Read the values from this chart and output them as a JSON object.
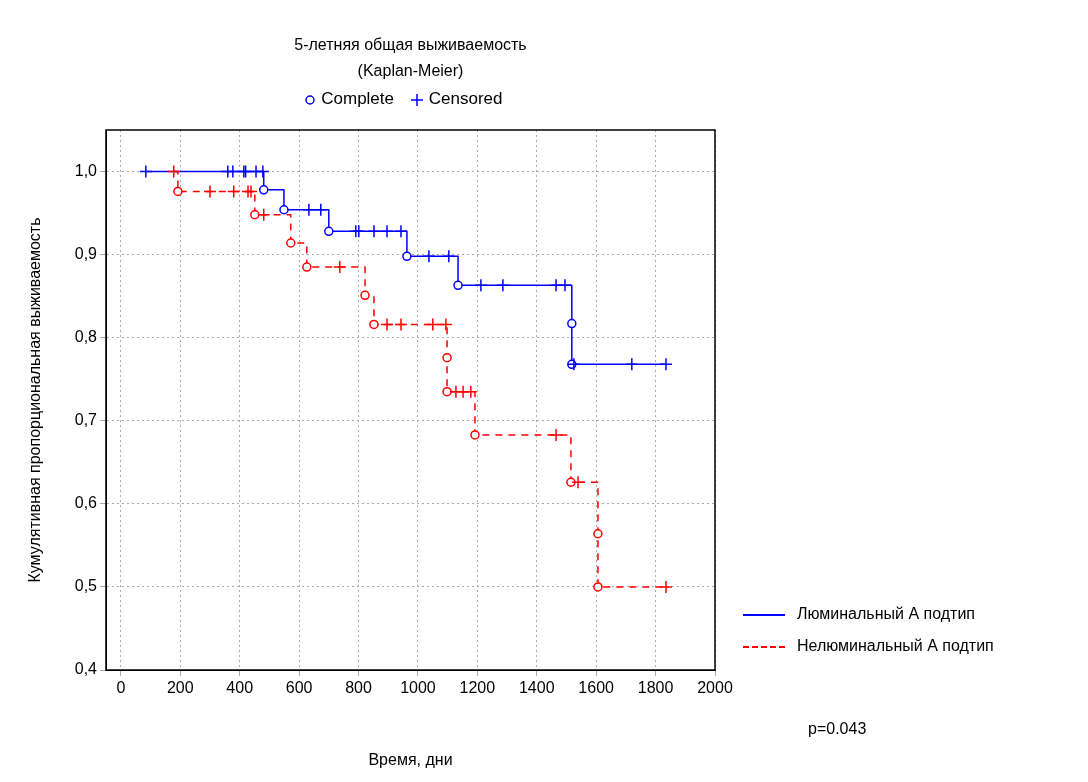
{
  "chart_data": {
    "type": "step",
    "title": "5-летняя общая выживаемость",
    "subtitle": "(Kaplan-Meier)",
    "xlabel": "Время, дни",
    "ylabel": "Кумулятивная пропорциональная выживаемость",
    "xlim": [
      -50,
      2000
    ],
    "xticks": [
      0,
      200,
      400,
      600,
      800,
      1000,
      1200,
      1400,
      1600,
      1800,
      2000
    ],
    "ylim": [
      0.4,
      1.05
    ],
    "yticks": [
      {
        "value": 0.4,
        "label": "0,4"
      },
      {
        "value": 0.5,
        "label": "0,5"
      },
      {
        "value": 0.6,
        "label": "0,6"
      },
      {
        "value": 0.7,
        "label": "0,7"
      },
      {
        "value": 0.8,
        "label": "0,8"
      },
      {
        "value": 0.9,
        "label": "0,9"
      },
      {
        "value": 1,
        "label": "1,0"
      }
    ],
    "grid": true,
    "legend": "right",
    "annotations": [
      "p=0.043"
    ],
    "series": [
      {
        "name": "Люминальный А подтип",
        "color": "#0000ff",
        "line_style": "solid",
        "marker": "none",
        "x": [
          84,
          481,
          549,
          700,
          963,
          1135,
          1518,
          1518,
          1835
        ],
        "values": [
          1,
          0.978,
          0.954,
          0.928,
          0.898,
          0.863,
          0.817,
          0.768,
          0.768
        ]
      },
      {
        "name": "Нелюминальный А подтип",
        "color": "#ff0000",
        "line_style": "dashed",
        "marker": "none",
        "x": [
          178,
          192,
          451,
          572,
          626,
          822,
          852,
          1098,
          1098,
          1192,
          1515,
          1606,
          1606,
          1835
        ],
        "values": [
          1,
          0.976,
          0.948,
          0.914,
          0.885,
          0.851,
          0.816,
          0.776,
          0.735,
          0.683,
          0.626,
          0.564,
          0.5,
          0.5
        ]
      },
      {
        "name": "Complete",
        "type": "scatter",
        "color": "#0000ff",
        "marker": "circle",
        "x": [
          481,
          549,
          700,
          963,
          1135,
          1518,
          1518
        ],
        "values": [
          0.978,
          0.954,
          0.928,
          0.898,
          0.863,
          0.817,
          0.768
        ]
      },
      {
        "type": "scatter",
        "color": "#ff0000",
        "marker": "circle",
        "x": [
          192,
          451,
          572,
          626,
          822,
          852,
          1098,
          1098,
          1192,
          1515,
          1606,
          1606
        ],
        "values": [
          0.976,
          0.948,
          0.914,
          0.885,
          0.851,
          0.816,
          0.776,
          0.735,
          0.683,
          0.626,
          0.564,
          0.5
        ]
      },
      {
        "name": "Censored",
        "type": "scatter",
        "color": "#0000ff",
        "marker": "cross",
        "x": [
          84,
          360,
          377,
          414,
          420,
          455,
          478,
          633,
          673,
          791,
          801,
          852,
          896,
          943,
          1037,
          1104,
          1212,
          1286,
          1465,
          1495,
          1525,
          1720,
          1835
        ],
        "values": [
          1,
          1,
          1,
          1,
          1,
          1,
          1,
          0.954,
          0.954,
          0.928,
          0.928,
          0.928,
          0.928,
          0.928,
          0.898,
          0.898,
          0.863,
          0.863,
          0.863,
          0.863,
          0.768,
          0.768,
          0.768
        ]
      },
      {
        "type": "scatter",
        "color": "#ff0000",
        "marker": "cross",
        "x": [
          178,
          300,
          380,
          428,
          438,
          481,
          737,
          896,
          943,
          1050,
          1094,
          1128,
          1152,
          1178,
          1465,
          1539,
          1835
        ],
        "values": [
          1,
          0.976,
          0.976,
          0.976,
          0.976,
          0.948,
          0.885,
          0.816,
          0.816,
          0.816,
          0.816,
          0.735,
          0.735,
          0.735,
          0.683,
          0.626,
          0.5
        ]
      }
    ]
  }
}
